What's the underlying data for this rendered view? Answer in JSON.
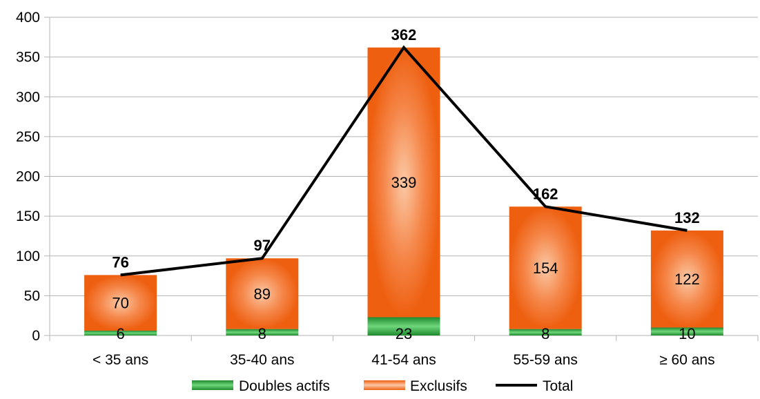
{
  "chart_data": {
    "type": "bar",
    "stacked": true,
    "categories": [
      "< 35 ans",
      "35-40 ans",
      "41-54 ans",
      "55-59 ans",
      "≥ 60 ans"
    ],
    "series": [
      {
        "name": "Doubles actifs",
        "type": "bar",
        "values": [
          6,
          8,
          23,
          8,
          10
        ],
        "color": "#2e9a3a"
      },
      {
        "name": "Exclusifs",
        "type": "bar",
        "values": [
          70,
          89,
          339,
          154,
          122
        ],
        "color": "#f26a1b"
      },
      {
        "name": "Total",
        "type": "line",
        "values": [
          76,
          97,
          362,
          162,
          132
        ],
        "color": "#000000"
      }
    ],
    "ylim": [
      0,
      400
    ],
    "yticks": [
      0,
      50,
      100,
      150,
      200,
      250,
      300,
      350,
      400
    ],
    "grid": true,
    "legend": "bottom"
  }
}
